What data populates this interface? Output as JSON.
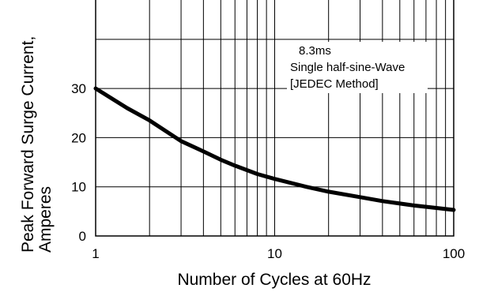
{
  "chart_data": {
    "type": "line",
    "title": "",
    "xlabel": "Number of Cycles at 60Hz",
    "ylabel_lines": [
      "Peak Forward Surge Current,",
      "Amperes"
    ],
    "x_scale": "log",
    "xlim": [
      1,
      100
    ],
    "ylim": [
      0,
      48
    ],
    "x_ticks": [
      1,
      10,
      100
    ],
    "x_tick_labels": [
      "1",
      "10",
      "100"
    ],
    "y_ticks": [
      0,
      10,
      20,
      30
    ],
    "y_tick_labels": [
      "0",
      "10",
      "20",
      "30"
    ],
    "grid": true,
    "annotation_lines": [
      "8.3ms",
      "Single half-sine-Wave",
      "[JEDEC Method]"
    ],
    "series": [
      {
        "x": [
          1,
          1.5,
          2,
          3,
          4,
          5,
          6,
          8,
          10,
          15,
          20,
          30,
          40,
          60,
          80,
          100
        ],
        "y": [
          30,
          26,
          23.5,
          19.3,
          17.2,
          15.5,
          14.3,
          12.6,
          11.6,
          10.0,
          9.0,
          7.9,
          7.1,
          6.2,
          5.7,
          5.3
        ]
      }
    ]
  }
}
